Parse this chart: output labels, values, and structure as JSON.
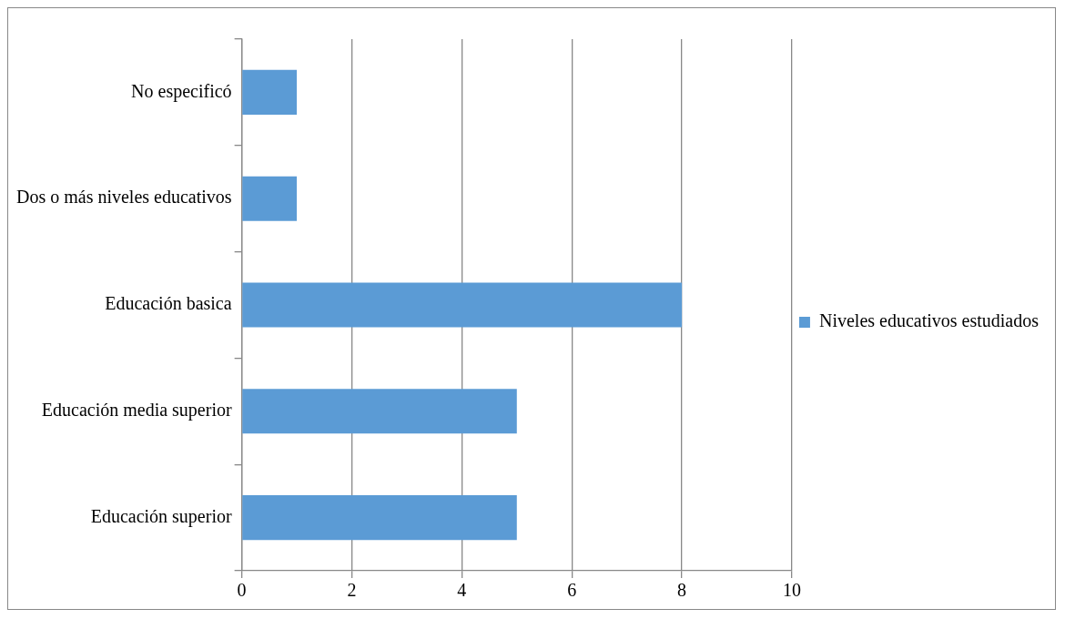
{
  "chart_data": {
    "type": "bar",
    "orientation": "horizontal",
    "categories": [
      "No especificó",
      "Dos o más niveles educativos",
      "Educación basica",
      "Educación media superior",
      "Educación superior"
    ],
    "series": [
      {
        "name": "Niveles educativos estudiados",
        "color": "#5b9bd5",
        "values": [
          1,
          1,
          8,
          5,
          5
        ]
      }
    ],
    "xlim": [
      0,
      10
    ],
    "xticks": [
      0,
      2,
      4,
      6,
      8,
      10
    ],
    "grid": "x",
    "legend": "right"
  }
}
